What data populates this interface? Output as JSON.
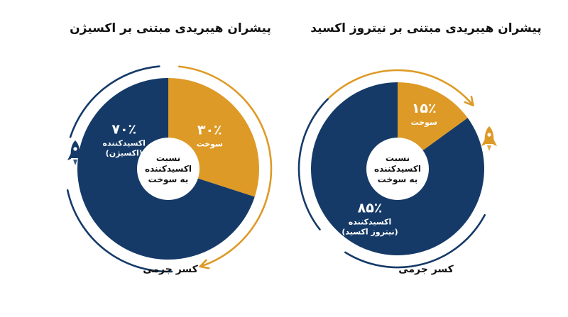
{
  "chart_data": [
    {
      "type": "pie",
      "title": "پیشران هیبریدی مبتنی بر اکسیژن",
      "center_label": [
        "نسبت",
        "اکسیدکننده",
        "به سوخت"
      ],
      "footer": "کسر جرمی",
      "slices": [
        {
          "name": "سوخت",
          "value": 30,
          "display": "۳۰٪",
          "lines": [
            "سوخت"
          ],
          "color": "#DE9A26"
        },
        {
          "name": "اکسیدکننده (اکسیژن)",
          "value": 70,
          "display": "۷۰٪",
          "lines": [
            "اکسیدکننده",
            "(اکسیژن)"
          ],
          "color": "#153A68"
        }
      ],
      "icon": "rocket-icon",
      "icon_color": "#153A68"
    },
    {
      "type": "pie",
      "title": "پیشران هیبریدی مبتنی بر نیتروز اکسید",
      "center_label": [
        "نسبت",
        "اکسیدکننده",
        "به سوخت"
      ],
      "footer": "کسر جرمی",
      "slices": [
        {
          "name": "سوخت",
          "value": 15,
          "display": "۱۵٪",
          "lines": [
            "سوخت"
          ],
          "color": "#DE9A26"
        },
        {
          "name": "اکسیدکننده (نیتروز اکسید)",
          "value": 85,
          "display": "۸۵٪",
          "lines": [
            "اکسیدکننده",
            "(نیتروز اکسید)"
          ],
          "color": "#153A68"
        }
      ],
      "icon": "rocket-icon",
      "icon_color": "#DE9A26"
    }
  ]
}
